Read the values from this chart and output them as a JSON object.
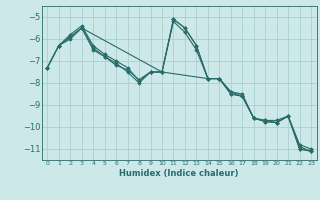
{
  "xlabel": "Humidex (Indice chaleur)",
  "bg_color": "#cce8e8",
  "grid_color": "#aacfcf",
  "line_color": "#2a6b6b",
  "xlim": [
    -0.5,
    23.5
  ],
  "ylim": [
    -11.5,
    -4.5
  ],
  "yticks": [
    -5,
    -6,
    -7,
    -8,
    -9,
    -10,
    -11
  ],
  "xticks": [
    0,
    1,
    2,
    3,
    4,
    5,
    6,
    7,
    8,
    9,
    10,
    11,
    12,
    13,
    14,
    15,
    16,
    17,
    18,
    19,
    20,
    21,
    22,
    23
  ],
  "lines": [
    {
      "x": [
        0,
        1,
        2,
        3,
        4,
        5,
        6,
        7,
        8,
        9,
        10,
        11,
        12,
        13,
        14,
        15,
        16,
        17,
        18,
        19,
        20,
        21,
        22,
        23
      ],
      "y": [
        -7.3,
        -6.3,
        -5.8,
        -5.4,
        -6.3,
        -6.7,
        -7.0,
        -7.3,
        -7.9,
        -7.5,
        -7.5,
        -5.1,
        -5.5,
        -6.3,
        -7.8,
        -7.8,
        -8.4,
        -8.5,
        -9.6,
        -9.7,
        -9.7,
        -9.5,
        -10.8,
        -11.0
      ]
    },
    {
      "x": [
        0,
        1,
        2,
        3,
        4,
        5,
        6,
        7,
        8,
        9,
        10,
        11,
        12,
        13,
        14,
        15,
        16,
        17,
        18,
        19,
        20,
        21,
        22,
        23
      ],
      "y": [
        -7.3,
        -6.3,
        -5.9,
        -5.5,
        -6.4,
        -6.8,
        -7.1,
        -7.5,
        -8.0,
        -7.5,
        -7.5,
        -5.2,
        -5.7,
        -6.5,
        -7.8,
        -7.8,
        -8.4,
        -8.6,
        -9.6,
        -9.7,
        -9.8,
        -9.5,
        -10.9,
        -11.1
      ]
    },
    {
      "x": [
        1,
        3,
        10,
        11,
        12,
        13,
        14,
        15,
        16,
        17,
        18,
        19,
        20,
        21,
        22,
        23
      ],
      "y": [
        -6.3,
        -5.5,
        -7.5,
        -5.1,
        -5.5,
        -6.3,
        -7.8,
        -7.8,
        -8.5,
        -8.6,
        -9.6,
        -9.75,
        -9.8,
        -9.5,
        -11.0,
        -11.1
      ]
    },
    {
      "x": [
        0,
        1,
        2,
        3,
        4,
        5,
        6,
        7,
        8,
        9,
        10,
        14,
        15,
        16,
        17,
        18,
        19,
        20,
        21,
        22,
        23
      ],
      "y": [
        -7.3,
        -6.3,
        -6.0,
        -5.5,
        -6.5,
        -6.8,
        -7.2,
        -7.4,
        -7.85,
        -7.5,
        -7.5,
        -7.8,
        -7.8,
        -8.5,
        -8.6,
        -9.6,
        -9.75,
        -9.8,
        -9.5,
        -11.0,
        -11.1
      ]
    }
  ]
}
